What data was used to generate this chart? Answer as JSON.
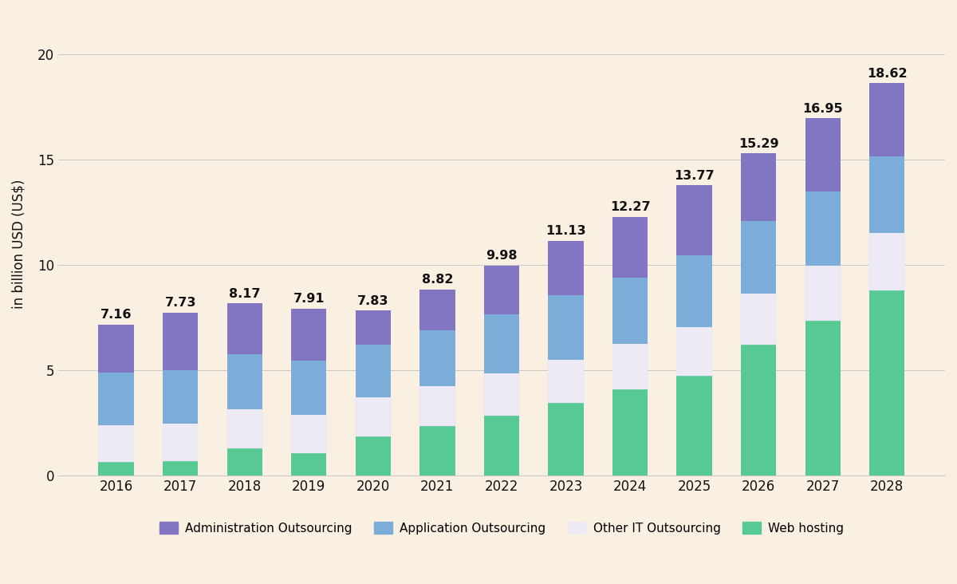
{
  "years": [
    2016,
    2017,
    2018,
    2019,
    2020,
    2021,
    2022,
    2023,
    2024,
    2025,
    2026,
    2027,
    2028
  ],
  "totals": [
    7.16,
    7.73,
    8.17,
    7.91,
    7.83,
    8.82,
    9.98,
    11.13,
    12.27,
    13.77,
    15.29,
    16.95,
    18.62
  ],
  "web_hosting": [
    0.65,
    0.7,
    1.3,
    1.05,
    1.85,
    2.35,
    2.85,
    3.45,
    4.1,
    4.75,
    6.2,
    7.35,
    8.8
  ],
  "other_it": [
    1.75,
    1.75,
    1.85,
    1.85,
    1.85,
    1.9,
    2.0,
    2.05,
    2.15,
    2.3,
    2.45,
    2.6,
    2.7
  ],
  "app_outsourcing": [
    2.5,
    2.55,
    2.6,
    2.55,
    2.5,
    2.65,
    2.8,
    3.05,
    3.15,
    3.4,
    3.45,
    3.55,
    3.65
  ],
  "colors": {
    "admin_outsourcing": "#8275C2",
    "app_outsourcing": "#7BADD8",
    "other_it": "#EEEAF5",
    "web_hosting": "#57C994"
  },
  "background_color": "#FAF0E2",
  "ylabel": "in billion USD (US$)",
  "yticks": [
    0,
    5,
    10,
    15,
    20
  ],
  "legend_labels": [
    "Administration Outsourcing",
    "Application Outsourcing",
    "Other IT Outsourcing",
    "Web hosting"
  ],
  "bar_width": 0.55
}
